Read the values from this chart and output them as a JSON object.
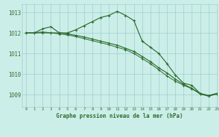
{
  "title": "Graphe pression niveau de la mer (hPa)",
  "background_color": "#cceee8",
  "grid_color": "#99cccc",
  "line_color": "#2d6b2d",
  "xlim": [
    -0.5,
    23
  ],
  "ylim": [
    1008.4,
    1013.4
  ],
  "yticks": [
    1009,
    1010,
    1011,
    1012,
    1013
  ],
  "xticks": [
    0,
    1,
    2,
    3,
    4,
    5,
    6,
    7,
    8,
    9,
    10,
    11,
    12,
    13,
    14,
    15,
    16,
    17,
    18,
    19,
    20,
    21,
    22,
    23
  ],
  "series": [
    [
      1012.0,
      1012.0,
      1012.2,
      1012.3,
      1012.0,
      1012.0,
      1012.15,
      1012.35,
      1012.55,
      1012.75,
      1012.85,
      1013.05,
      1012.85,
      1012.6,
      1011.6,
      1011.3,
      1011.0,
      1010.5,
      1009.95,
      1009.55,
      1009.45,
      1009.05,
      1008.95,
      1009.05
    ],
    [
      1012.0,
      1012.0,
      1012.0,
      1012.0,
      1012.0,
      1011.95,
      1011.88,
      1011.8,
      1011.7,
      1011.6,
      1011.5,
      1011.4,
      1011.25,
      1011.1,
      1010.85,
      1010.6,
      1010.3,
      1010.05,
      1009.75,
      1009.5,
      1009.3,
      1009.05,
      1008.95,
      1009.05
    ],
    [
      1012.0,
      1012.0,
      1012.05,
      1012.0,
      1011.95,
      1011.9,
      1011.82,
      1011.72,
      1011.62,
      1011.52,
      1011.42,
      1011.3,
      1011.18,
      1011.0,
      1010.75,
      1010.5,
      1010.2,
      1009.9,
      1009.65,
      1009.45,
      1009.28,
      1009.02,
      1008.92,
      1009.02
    ]
  ],
  "figsize": [
    3.2,
    2.0
  ],
  "dpi": 100
}
